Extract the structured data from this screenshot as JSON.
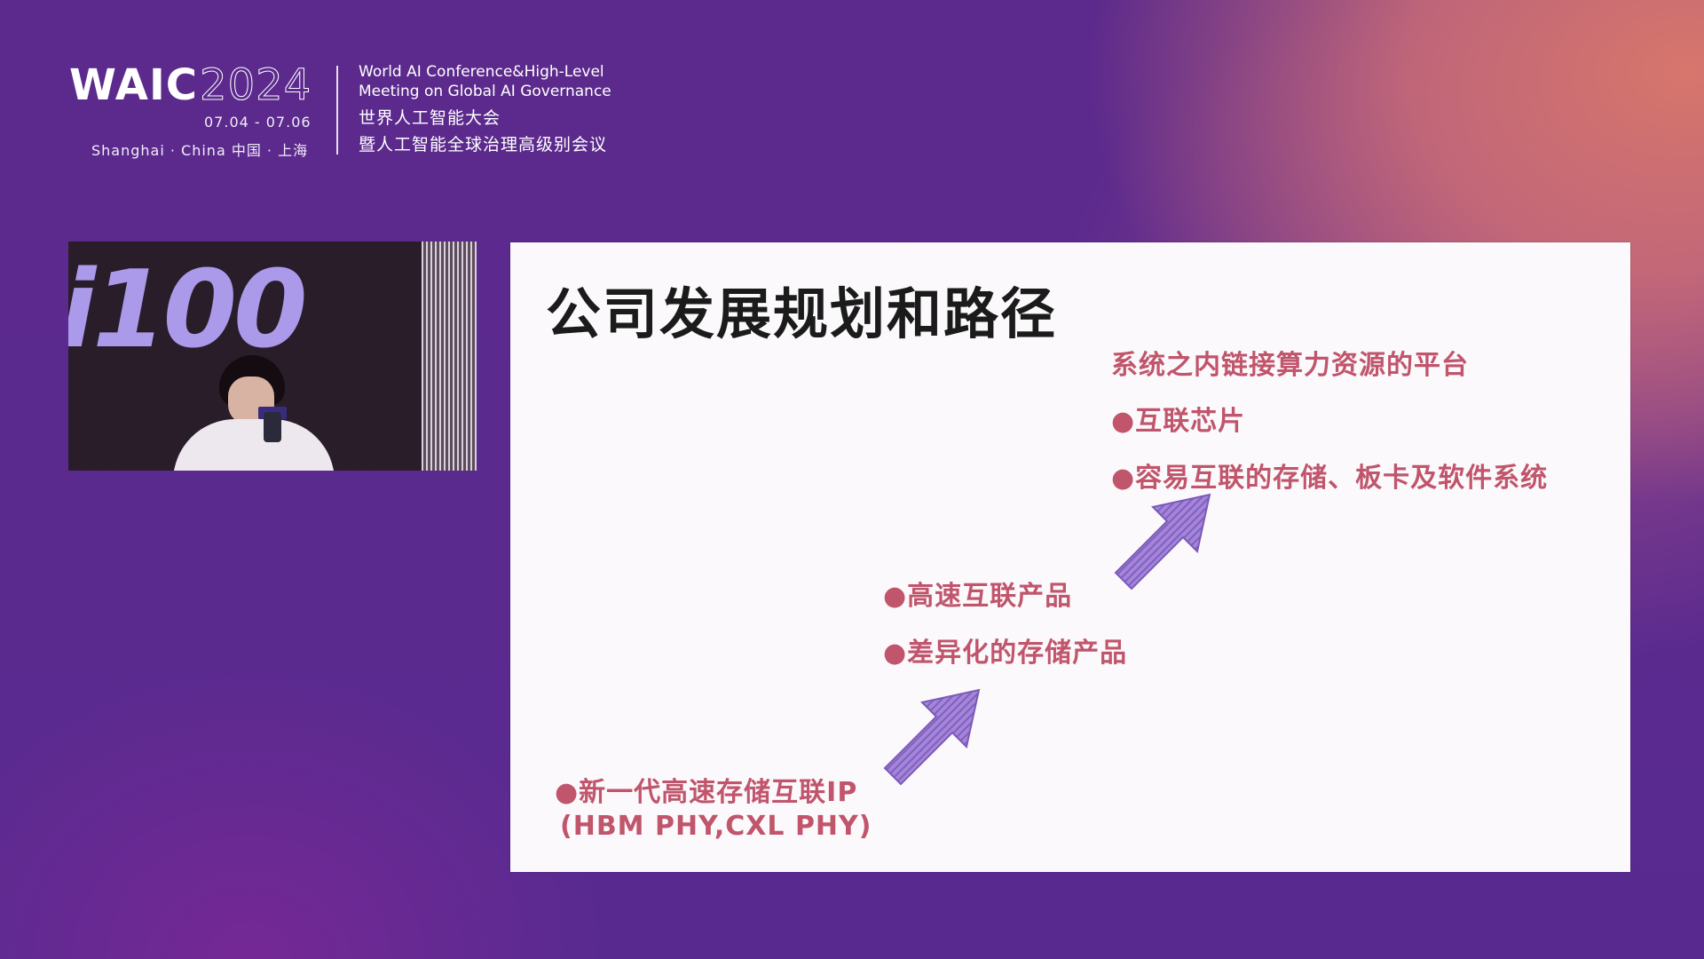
{
  "header": {
    "logo_waic": "WAIC",
    "logo_year": "2024",
    "dates": "07.04 - 07.06",
    "location": "Shanghai · China  中国 · 上海",
    "conf_en_line1": "World AI Conference&High-Level",
    "conf_en_line2": "Meeting on Global AI Governance",
    "conf_zh_line1": "世界人工智能大会",
    "conf_zh_line2": "暨人工智能全球治理高级别会议"
  },
  "video": {
    "backdrop_text": "i100"
  },
  "slide": {
    "title": "公司发展规划和路径",
    "stage3_heading": "系统之内链接算力资源的平台",
    "stage3_item1": "●互联芯片",
    "stage3_item2": "●容易互联的存储、板卡及软件系统",
    "stage2_item1": "●高速互联产品",
    "stage2_item2": "●差异化的存储产品",
    "stage1_item1": "●新一代高速存储互联IP",
    "stage1_item2": "(HBM PHY,CXL PHY)"
  },
  "colors": {
    "accent_text": "#c0556c",
    "arrow": "#9a7dd0",
    "slide_bg": "#fbf9fb"
  }
}
